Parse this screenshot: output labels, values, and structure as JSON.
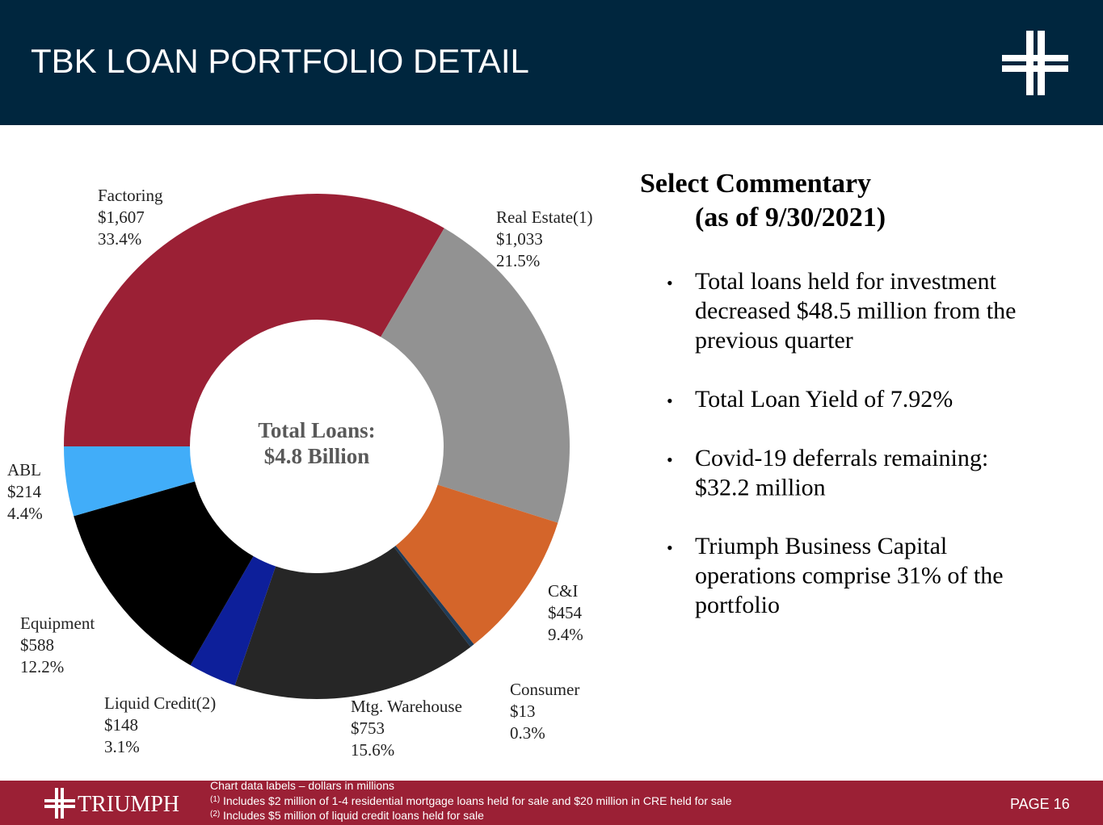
{
  "header": {
    "title": "TBK LOAN PORTFOLIO DETAIL"
  },
  "chart_data": {
    "type": "donut",
    "center_label": [
      "Total Loans:",
      "$4.8 Billion"
    ],
    "categories": [
      "Factoring",
      "Real Estate(1)",
      "C&I",
      "Consumer",
      "Mtg. Warehouse",
      "Liquid Credit(2)",
      "Equipment",
      "ABL"
    ],
    "values": [
      1607,
      1033,
      454,
      13,
      753,
      148,
      588,
      214
    ],
    "value_labels": [
      "$1,607",
      "$1,033",
      "$454",
      "$13",
      "$753",
      "$148",
      "$588",
      "$214"
    ],
    "percent_labels": [
      "33.4%",
      "21.5%",
      "9.4%",
      "0.3%",
      "15.6%",
      "3.1%",
      "12.2%",
      "4.4%"
    ],
    "colors": [
      "#9b2035",
      "#929292",
      "#d4652a",
      "#1f3b57",
      "#262626",
      "#0d1f9a",
      "#000000",
      "#41adf9"
    ]
  },
  "commentary": {
    "title": [
      "Select Commentary",
      "(as of 9/30/2021)"
    ],
    "bullets": [
      [
        "Total loans held for investment",
        "decreased $48.5 million from the",
        "previous quarter"
      ],
      [
        "Total Loan Yield of 7.92%"
      ],
      [
        "Covid-19 deferrals remaining:",
        "$32.2 million"
      ],
      [
        "Triumph Business Capital",
        "operations comprise 31% of the",
        "portfolio"
      ]
    ]
  },
  "footer": {
    "logo": "TRIUMPH",
    "note": "Chart data labels – dollars in millions",
    "footnotes": [
      {
        "marker": "(1)",
        "text": "Includes $2 million of 1-4 residential mortgage loans held for sale and  $20 million in CRE held for sale"
      },
      {
        "marker": "(2)",
        "text": "Includes $5 million of liquid credit loans held for sale"
      }
    ],
    "page": "PAGE 16"
  }
}
